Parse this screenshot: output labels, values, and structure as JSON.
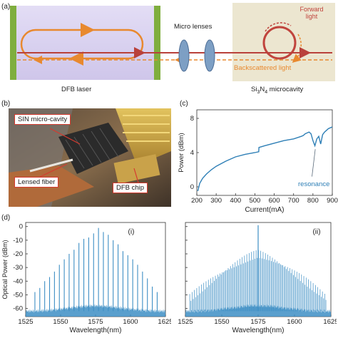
{
  "panel_a": {
    "label": "(a)",
    "micro_lenses": "Micro lenses",
    "forward_light": "Forward light",
    "backscattered_light": "Backscattered light",
    "dfb_laser": "DFB laser",
    "microcavity_prefix": "Si",
    "microcavity_sub1": "3",
    "microcavity_mid": "N",
    "microcavity_sub2": "4",
    "microcavity_suffix": " microcavity"
  },
  "panel_b": {
    "label": "(b)",
    "sin_cavity": "SIN micro-cavity",
    "lensed_fiber": "Lensed fiber",
    "dfb_chip": "DFB chip"
  },
  "chart_data": [
    {
      "id": "c",
      "label": "(c)",
      "type": "line",
      "xlabel": "Current(mA)",
      "ylabel": "Power (dBm)",
      "xlim": [
        200,
        900
      ],
      "ylim": [
        -1,
        9
      ],
      "xticks": [
        200,
        300,
        400,
        500,
        600,
        700,
        800,
        900
      ],
      "yticks": [
        0,
        4,
        8
      ],
      "annotation": "resonance",
      "color": "#2e7fb6",
      "x": [
        205,
        215,
        230,
        250,
        275,
        300,
        350,
        400,
        450,
        500,
        520,
        521,
        550,
        600,
        650,
        700,
        740,
        750,
        760,
        770,
        780,
        790,
        800,
        810,
        820,
        830,
        840,
        850,
        860,
        870,
        880,
        890,
        900
      ],
      "y": [
        -0.5,
        0.4,
        1.0,
        1.5,
        2.0,
        2.4,
        3.0,
        3.5,
        3.8,
        4.0,
        4.1,
        4.6,
        4.8,
        5.1,
        5.4,
        5.6,
        5.9,
        6.0,
        6.2,
        6.3,
        6.4,
        6.2,
        5.4,
        4.8,
        5.6,
        5.9,
        5.0,
        6.1,
        6.4,
        6.6,
        6.8,
        6.9,
        7.0
      ]
    },
    {
      "id": "i",
      "label": "(i)",
      "type": "line",
      "xlabel": "Wavelength(nm)",
      "ylabel": "Optical Power (dBm)",
      "xlim": [
        1525,
        1625
      ],
      "ylim": [
        -66,
        3
      ],
      "xticks": [
        1525,
        1550,
        1575,
        1600,
        1625
      ],
      "yticks": [
        0,
        -10,
        -20,
        -30,
        -40,
        -50,
        -60
      ],
      "color": "#3d8ec4",
      "noise_floor": -62,
      "x": [
        1531.6,
        1535.1,
        1538.6,
        1542.1,
        1545.6,
        1549.1,
        1552.6,
        1556.1,
        1559.6,
        1563.1,
        1566.6,
        1570.1,
        1573.6,
        1577.1,
        1580.6,
        1584.1,
        1587.6,
        1591.1,
        1594.6,
        1598.1,
        1601.6,
        1605.1,
        1608.6,
        1612.1,
        1615.6,
        1619.1
      ],
      "y": [
        -48,
        -45,
        -40,
        -37,
        -33,
        -28,
        -24,
        -20,
        -17,
        -12,
        -9,
        -8,
        -5,
        -1,
        -4,
        -6,
        -10,
        -13,
        -18,
        -21,
        -24,
        -28,
        -33,
        -38,
        -44,
        -48
      ]
    },
    {
      "id": "ii",
      "label": "(ii)",
      "type": "line",
      "xlabel": "Wavelength(nm)",
      "ylabel": "",
      "xlim": [
        1525,
        1625
      ],
      "ylim": [
        -66,
        3
      ],
      "xticks": [
        1525,
        1550,
        1575,
        1600,
        1625
      ],
      "yticks": [
        0,
        -10,
        -20,
        -30,
        -40,
        -50,
        -60
      ],
      "color": "#3d8ec4",
      "noise_floor": -62,
      "peak": {
        "x": 1575,
        "y": 1
      },
      "envelope": {
        "center": 1575,
        "top": -20,
        "edge": -55
      }
    }
  ]
}
